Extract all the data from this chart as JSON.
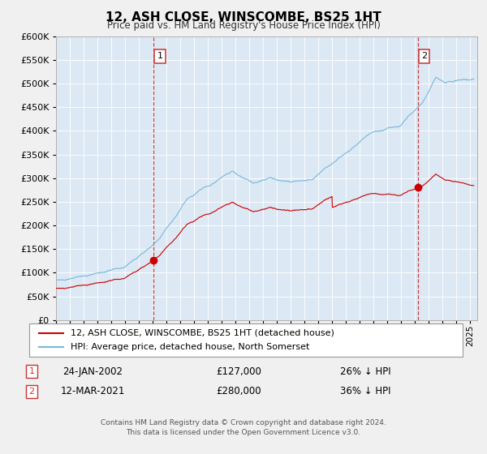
{
  "title": "12, ASH CLOSE, WINSCOMBE, BS25 1HT",
  "subtitle": "Price paid vs. HM Land Registry's House Price Index (HPI)",
  "background_color": "#f0f0f0",
  "plot_bg_color": "#dce9f5",
  "hpi_color": "#7ab8d9",
  "price_color": "#cc0000",
  "grid_color": "#ffffff",
  "ylim": [
    0,
    600000
  ],
  "yticks": [
    0,
    50000,
    100000,
    150000,
    200000,
    250000,
    300000,
    350000,
    400000,
    450000,
    500000,
    550000,
    600000
  ],
  "xlim_start": 1995.0,
  "xlim_end": 2025.5,
  "sale1_x": 2002.07,
  "sale1_y": 127000,
  "sale1_label": "1",
  "sale2_x": 2021.19,
  "sale2_y": 280000,
  "sale2_label": "2",
  "legend_line1": "12, ASH CLOSE, WINSCOMBE, BS25 1HT (detached house)",
  "legend_line2": "HPI: Average price, detached house, North Somerset",
  "table_row1_num": "1",
  "table_row1_date": "24-JAN-2002",
  "table_row1_price": "£127,000",
  "table_row1_hpi": "26% ↓ HPI",
  "table_row2_num": "2",
  "table_row2_date": "12-MAR-2021",
  "table_row2_price": "£280,000",
  "table_row2_hpi": "36% ↓ HPI",
  "footer_line1": "Contains HM Land Registry data © Crown copyright and database right 2024.",
  "footer_line2": "This data is licensed under the Open Government Licence v3.0."
}
